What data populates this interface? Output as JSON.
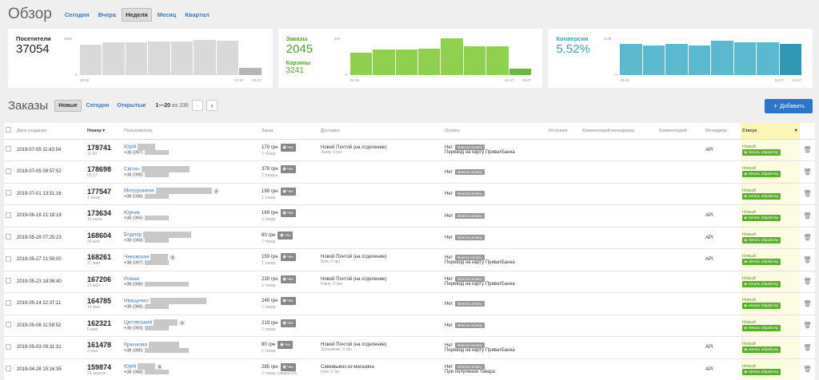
{
  "overview": {
    "title": "Обзор",
    "periods": [
      "Сегодня",
      "Вчера",
      "Неделя",
      "Месяц",
      "Квартал"
    ],
    "active_period": 2
  },
  "cards": [
    {
      "label": "Посетители",
      "value": "37054",
      "label_color": "#222",
      "value_color": "#222",
      "bar_color": "#d9d9d9",
      "last_color": "#b5b5b5",
      "ymax": "5565",
      "y0": "0",
      "x_start": "28.06",
      "x_mid": "04.07",
      "x_end": "05.07",
      "bars": [
        0.82,
        0.9,
        0.9,
        0.92,
        0.92,
        0.95,
        0.93,
        0.2
      ]
    },
    {
      "label": "Заказы",
      "value": "2045",
      "label2": "Корзины",
      "value2": "3241",
      "label_color": "#4ea52a",
      "value_color": "#4ea52a",
      "bar_color": "#8fd14f",
      "last_color": "#6fb53b",
      "ymax": "328",
      "y0": "0",
      "x_start": "28.06",
      "x_mid": "04.07",
      "x_end": "05.07",
      "bars": [
        0.6,
        0.7,
        0.7,
        0.72,
        1.0,
        0.78,
        0.78,
        0.18
      ]
    },
    {
      "label": "Конверсия",
      "value": "5.52%",
      "label_color": "#3aa3c0",
      "value_color": "#3aa3c0",
      "bar_color": "#5bb9cf",
      "last_color": "#2f98b5",
      "ymax": "6.29",
      "y0": "0",
      "x_start": "28.06",
      "x_mid": "04.07",
      "x_end": "05.07",
      "bars": [
        0.84,
        0.81,
        0.84,
        0.81,
        0.93,
        0.89,
        0.89,
        0.85
      ]
    }
  ],
  "orders": {
    "title": "Заказы",
    "filters": [
      "Новые",
      "Сегодня",
      "Открытые"
    ],
    "active_filter": 0,
    "pager_range": "1—20",
    "pager_of": "из 336",
    "add_label": "Добавить"
  },
  "columns": [
    "",
    "Дата создания",
    "Номер",
    "Пользователь",
    "Заказ",
    "Доставка",
    "Оплата",
    "Источник",
    "Комментарий менеджера",
    "Комментарий",
    "Менеджер",
    "Статус",
    ""
  ],
  "rows": [
    {
      "date": "2019-07-05 11:43:54",
      "num": "178741",
      "sub": "11:43",
      "name": "Юрій",
      "phone": "+38 (097)",
      "cnt": "",
      "sum": "179 грн",
      "qty": "1 товар",
      "del": "Новой Почтой (на отделение)",
      "del2": "Львів, 0 грн",
      "pay": "Нет",
      "pay2": "Перевод на карту ПриватБанка",
      "mgr": "API",
      "status": "Новый",
      "w1": 22,
      "w2": 30
    },
    {
      "date": "2019-07-05 09:57:52",
      "num": "178698",
      "sub": "09:57",
      "name": "Світич",
      "phone": "+38 (095)",
      "cnt": "",
      "sum": "378 грн",
      "qty": "2 товара",
      "del": "",
      "del2": "",
      "pay": "Нет",
      "pay2": "",
      "mgr": "",
      "status": "Новый",
      "w1": 60,
      "w2": 30
    },
    {
      "date": "2019-07-01 13:51:16",
      "num": "177547",
      "sub": "1 июля",
      "name": "Митрушкина",
      "phone": "+38 (098)",
      "cnt": "2",
      "sum": "199 грн",
      "qty": "1 товар",
      "del": "",
      "del2": "",
      "pay": "Нет",
      "pay2": "",
      "mgr": "",
      "status": "Новый",
      "w1": 70,
      "w2": 30
    },
    {
      "date": "2019-06-16 21:18:18",
      "num": "173634",
      "sub": "16 июня",
      "name": "Юрчик",
      "phone": "+38 (066)",
      "cnt": "",
      "sum": "169 грн",
      "qty": "1 товар",
      "del": "",
      "del2": "",
      "pay": "Нет",
      "pay2": "",
      "mgr": "API",
      "status": "Новый",
      "w1": 0,
      "w2": 30
    },
    {
      "date": "2019-05-29 07:25:23",
      "num": "168604",
      "sub": "29 мая",
      "name": "Боднар",
      "phone": "+38 (093)",
      "cnt": "",
      "sum": "60 грн",
      "qty": "1 товар",
      "del": "",
      "del2": "",
      "pay": "Нет",
      "pay2": "",
      "mgr": "API",
      "status": "Новый",
      "w1": 60,
      "w2": 30
    },
    {
      "date": "2019-05-27 21:59:00",
      "num": "168261",
      "sub": "27 мая",
      "name": "Чековская",
      "phone": "+38 (097)",
      "cnt": "3",
      "sum": "159 грн",
      "qty": "1 товар",
      "del": "Новой Почтой (на отделение)",
      "del2": "Київ, 0 грн",
      "pay": "Нет",
      "pay2": "Перевод на карту ПриватБанка",
      "mgr": "API",
      "status": "Новый",
      "w1": 22,
      "w2": 30
    },
    {
      "date": "2019-05-23 18:06:40",
      "num": "167206",
      "sub": "23 мая",
      "name": "Роман",
      "phone": "+38 (098)",
      "cnt": "",
      "sum": "239 грн",
      "qty": "1 товар",
      "del": "Новой Почтой (на отделение)",
      "del2": "Рівне, 0 грн",
      "pay": "Нет",
      "pay2": "Перевод на карту ПриватБанка",
      "mgr": "",
      "status": "Новый",
      "w1": 0,
      "w2": 55
    },
    {
      "date": "2019-05-14 22:37:11",
      "num": "164785",
      "sub": "14 мая",
      "name": "Иващенко",
      "phone": "+38 (068)",
      "cnt": "",
      "sum": "249 грн",
      "qty": "1 товар",
      "del": "",
      "del2": "",
      "pay": "Нет",
      "pay2": "",
      "mgr": "",
      "status": "Новый",
      "w1": 70,
      "w2": 30
    },
    {
      "date": "2019-05-06 11:58:52",
      "num": "162321",
      "sub": "6 мая",
      "name": "Цитовський",
      "phone": "+38 (093)",
      "cnt": "3",
      "sum": "219 грн",
      "qty": "1 товар",
      "del": "",
      "del2": "",
      "pay": "Нет",
      "pay2": "",
      "mgr": "",
      "status": "Новый",
      "w1": 30,
      "w2": 30
    },
    {
      "date": "2019-05-03 09:31:31",
      "num": "161478",
      "sub": "3 мая",
      "name": "Крючкова",
      "phone": "+38 (095)",
      "cnt": "",
      "sum": "80 грн",
      "qty": "1 товар",
      "del": "Новой Почтой (на отделение)",
      "del2": "Запоріжжя, 0 грн",
      "pay": "Нет",
      "pay2": "Перевод на карту ПриватБанка",
      "mgr": "API",
      "status": "Новый",
      "w1": 38,
      "w2": 55
    },
    {
      "date": "2019-04-26 15:16:35",
      "num": "159874",
      "sub": "26 апреля",
      "name": "Юрій",
      "phone": "+38 (068)",
      "cnt": "5",
      "sum": "285 грн",
      "qty": "1 товар, скидка 5%",
      "del": "Самовывоз из магазина",
      "del2": "Київ, 0 грн",
      "pay": "Нет",
      "pay2": "При получении товара",
      "mgr": "API",
      "status": "Новый",
      "w1": 22,
      "w2": 30
    }
  ],
  "labels": {
    "check": "Чек",
    "pay_btn": "Внести оплату",
    "start_btn": "▶ Начать обработку"
  }
}
